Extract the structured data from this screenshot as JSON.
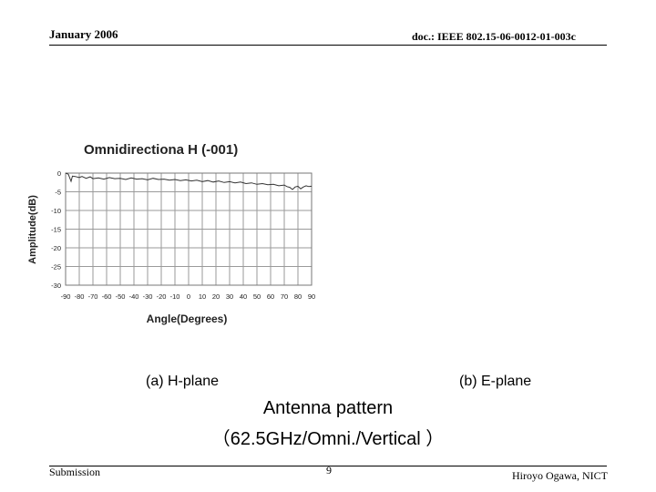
{
  "header": {
    "date": "January 2006",
    "doc_id": "doc.: IEEE 802.15-06-0012-01-003c"
  },
  "figure": {
    "caption_a": "(a) H-plane",
    "caption_b": "(b) E-plane",
    "title_line1": "Antenna pattern",
    "title_line2": "（62.5GHz/Omni./Vertical ）"
  },
  "footer": {
    "left": "Submission",
    "page": "9",
    "right": "Hiroyo Ogawa, NICT"
  },
  "chart_data": {
    "type": "line",
    "title": "Omnidirectiona  H   (-001)",
    "xlabel": "Angle(Degrees)",
    "ylabel": "Amplitude(dB)",
    "xlim": [
      -90,
      90
    ],
    "ylim": [
      -30,
      0
    ],
    "x_ticks": [
      -90,
      -80,
      -70,
      -60,
      -50,
      -40,
      -30,
      -20,
      -10,
      0,
      10,
      20,
      30,
      40,
      50,
      60,
      70,
      80,
      90
    ],
    "y_ticks": [
      0,
      -5,
      -10,
      -15,
      -20,
      -25,
      -30
    ],
    "grid": true,
    "series": [
      {
        "x": [
          -90,
          -88,
          -86,
          -85,
          -83,
          -80,
          -78,
          -75,
          -72,
          -70,
          -66,
          -62,
          -58,
          -54,
          -50,
          -46,
          -42,
          -38,
          -34,
          -30,
          -26,
          -22,
          -18,
          -14,
          -10,
          -6,
          -2,
          2,
          6,
          10,
          14,
          18,
          22,
          26,
          30,
          34,
          38,
          42,
          46,
          50,
          54,
          58,
          62,
          66,
          70,
          72,
          74,
          76,
          78,
          80,
          82,
          84,
          86,
          88,
          90
        ],
        "values": [
          0,
          -0.3,
          -2.2,
          -0.8,
          -0.9,
          -1.2,
          -0.9,
          -1.4,
          -1.0,
          -1.5,
          -1.3,
          -1.6,
          -1.2,
          -1.5,
          -1.4,
          -1.7,
          -1.3,
          -1.6,
          -1.5,
          -1.8,
          -1.4,
          -1.7,
          -1.6,
          -1.9,
          -1.7,
          -2.0,
          -1.8,
          -2.1,
          -1.9,
          -2.3,
          -2.0,
          -2.4,
          -2.1,
          -2.5,
          -2.3,
          -2.6,
          -2.4,
          -2.8,
          -2.6,
          -3.0,
          -2.8,
          -3.1,
          -3.0,
          -3.4,
          -3.2,
          -3.6,
          -3.8,
          -4.4,
          -3.7,
          -3.5,
          -4.2,
          -3.7,
          -3.4,
          -3.6,
          -3.5
        ]
      }
    ]
  }
}
